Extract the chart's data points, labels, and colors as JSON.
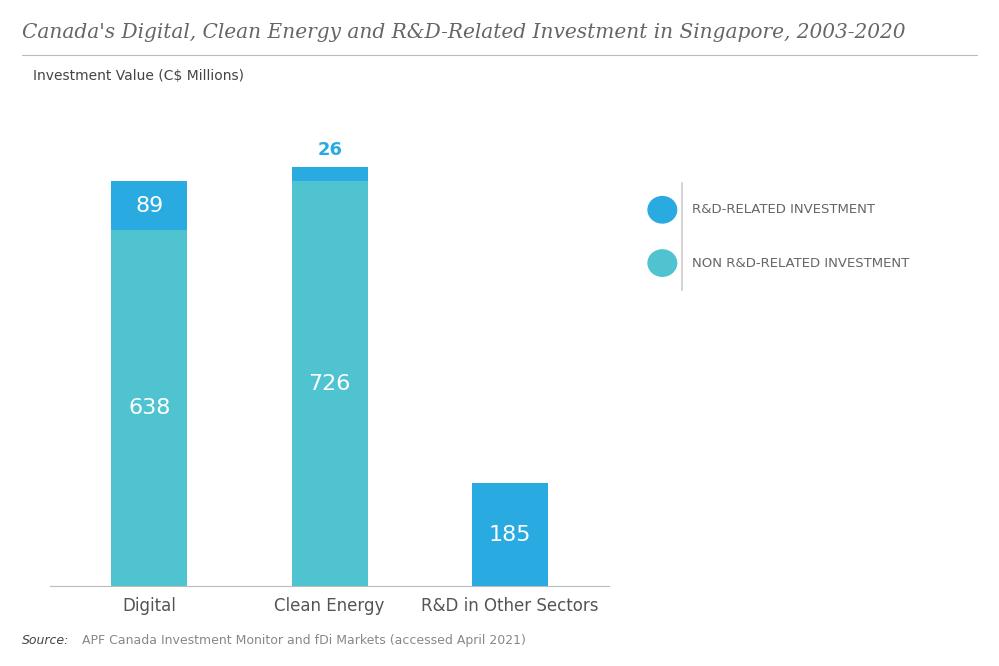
{
  "title": "Canada's Digital, Clean Energy and R&D-Related Investment in Singapore, 2003-2020",
  "subtitle": "Investment Value (C$ Millions)",
  "subtitle_bg": "#daeaf2",
  "categories": [
    "Digital",
    "Clean Energy",
    "R&D in Other Sectors"
  ],
  "non_rd_values": [
    638,
    726,
    0
  ],
  "rd_values": [
    89,
    26,
    185
  ],
  "rd_color": "#29ABE2",
  "non_rd_color": "#4FC3D0",
  "bar_width": 0.42,
  "ylim": [
    0,
    860
  ],
  "legend_labels": [
    "R&D-RELATED INVESTMENT",
    "NON R&D-RELATED INVESTMENT"
  ],
  "legend_rd_color": "#29ABE2",
  "legend_non_rd_color": "#4FC3D0",
  "source_bold": "Source:",
  "source_text": "APF Canada Investment Monitor and fDi Markets (accessed April 2021)",
  "bg_color": "#ffffff",
  "text_color": "#555555",
  "title_color": "#666666",
  "axis_label_color": "#555555",
  "label_fontsize": 16,
  "title_fontsize": 14.5
}
